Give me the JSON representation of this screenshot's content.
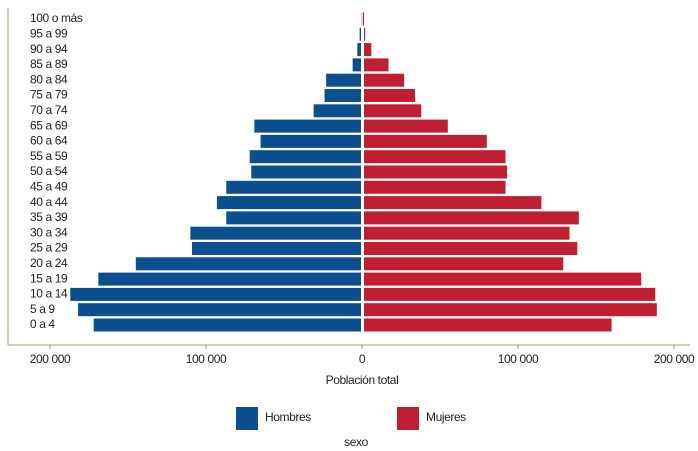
{
  "chart_data": {
    "type": "pyramid",
    "categories": [
      "100 o más",
      "95 a 99",
      "90 a 94",
      "85 a 89",
      "80 a 84",
      "75 a 79",
      "70 a 74",
      "65 a 69",
      "60 a 64",
      "55 a 59",
      "50 a 54",
      "45 a 49",
      "40 a 44",
      "35 a 39",
      "30 a 34",
      "25 a 29",
      "20 a 24",
      "15 a 19",
      "10 a 14",
      "5 a 9",
      "0 a 4"
    ],
    "series": [
      {
        "name": "Hombres",
        "color": "#0b4f8e",
        "values": [
          -500,
          -1500,
          -3000,
          -6000,
          -23000,
          -24000,
          -31000,
          -69000,
          -65000,
          -72000,
          -71000,
          -87000,
          -93000,
          -87000,
          -110000,
          -109000,
          -145000,
          -169000,
          -187000,
          -182000,
          -172000
        ]
      },
      {
        "name": "Mujeres",
        "color": "#c01f32",
        "values": [
          500,
          2000,
          6000,
          17000,
          27000,
          34000,
          38000,
          55000,
          80000,
          92000,
          93000,
          92000,
          115000,
          139000,
          133000,
          138000,
          129000,
          179000,
          188000,
          189000,
          160000
        ]
      }
    ],
    "xlim": [
      -200000,
      200000
    ],
    "xticks": [
      {
        "value": -200000,
        "label": "200 000"
      },
      {
        "value": -100000,
        "label": "100 000"
      },
      0,
      {
        "value": 100000,
        "label": "100 000"
      },
      {
        "value": 200000,
        "label": "200 000"
      }
    ],
    "x_label": "Población total",
    "legend_title": "sexo"
  }
}
